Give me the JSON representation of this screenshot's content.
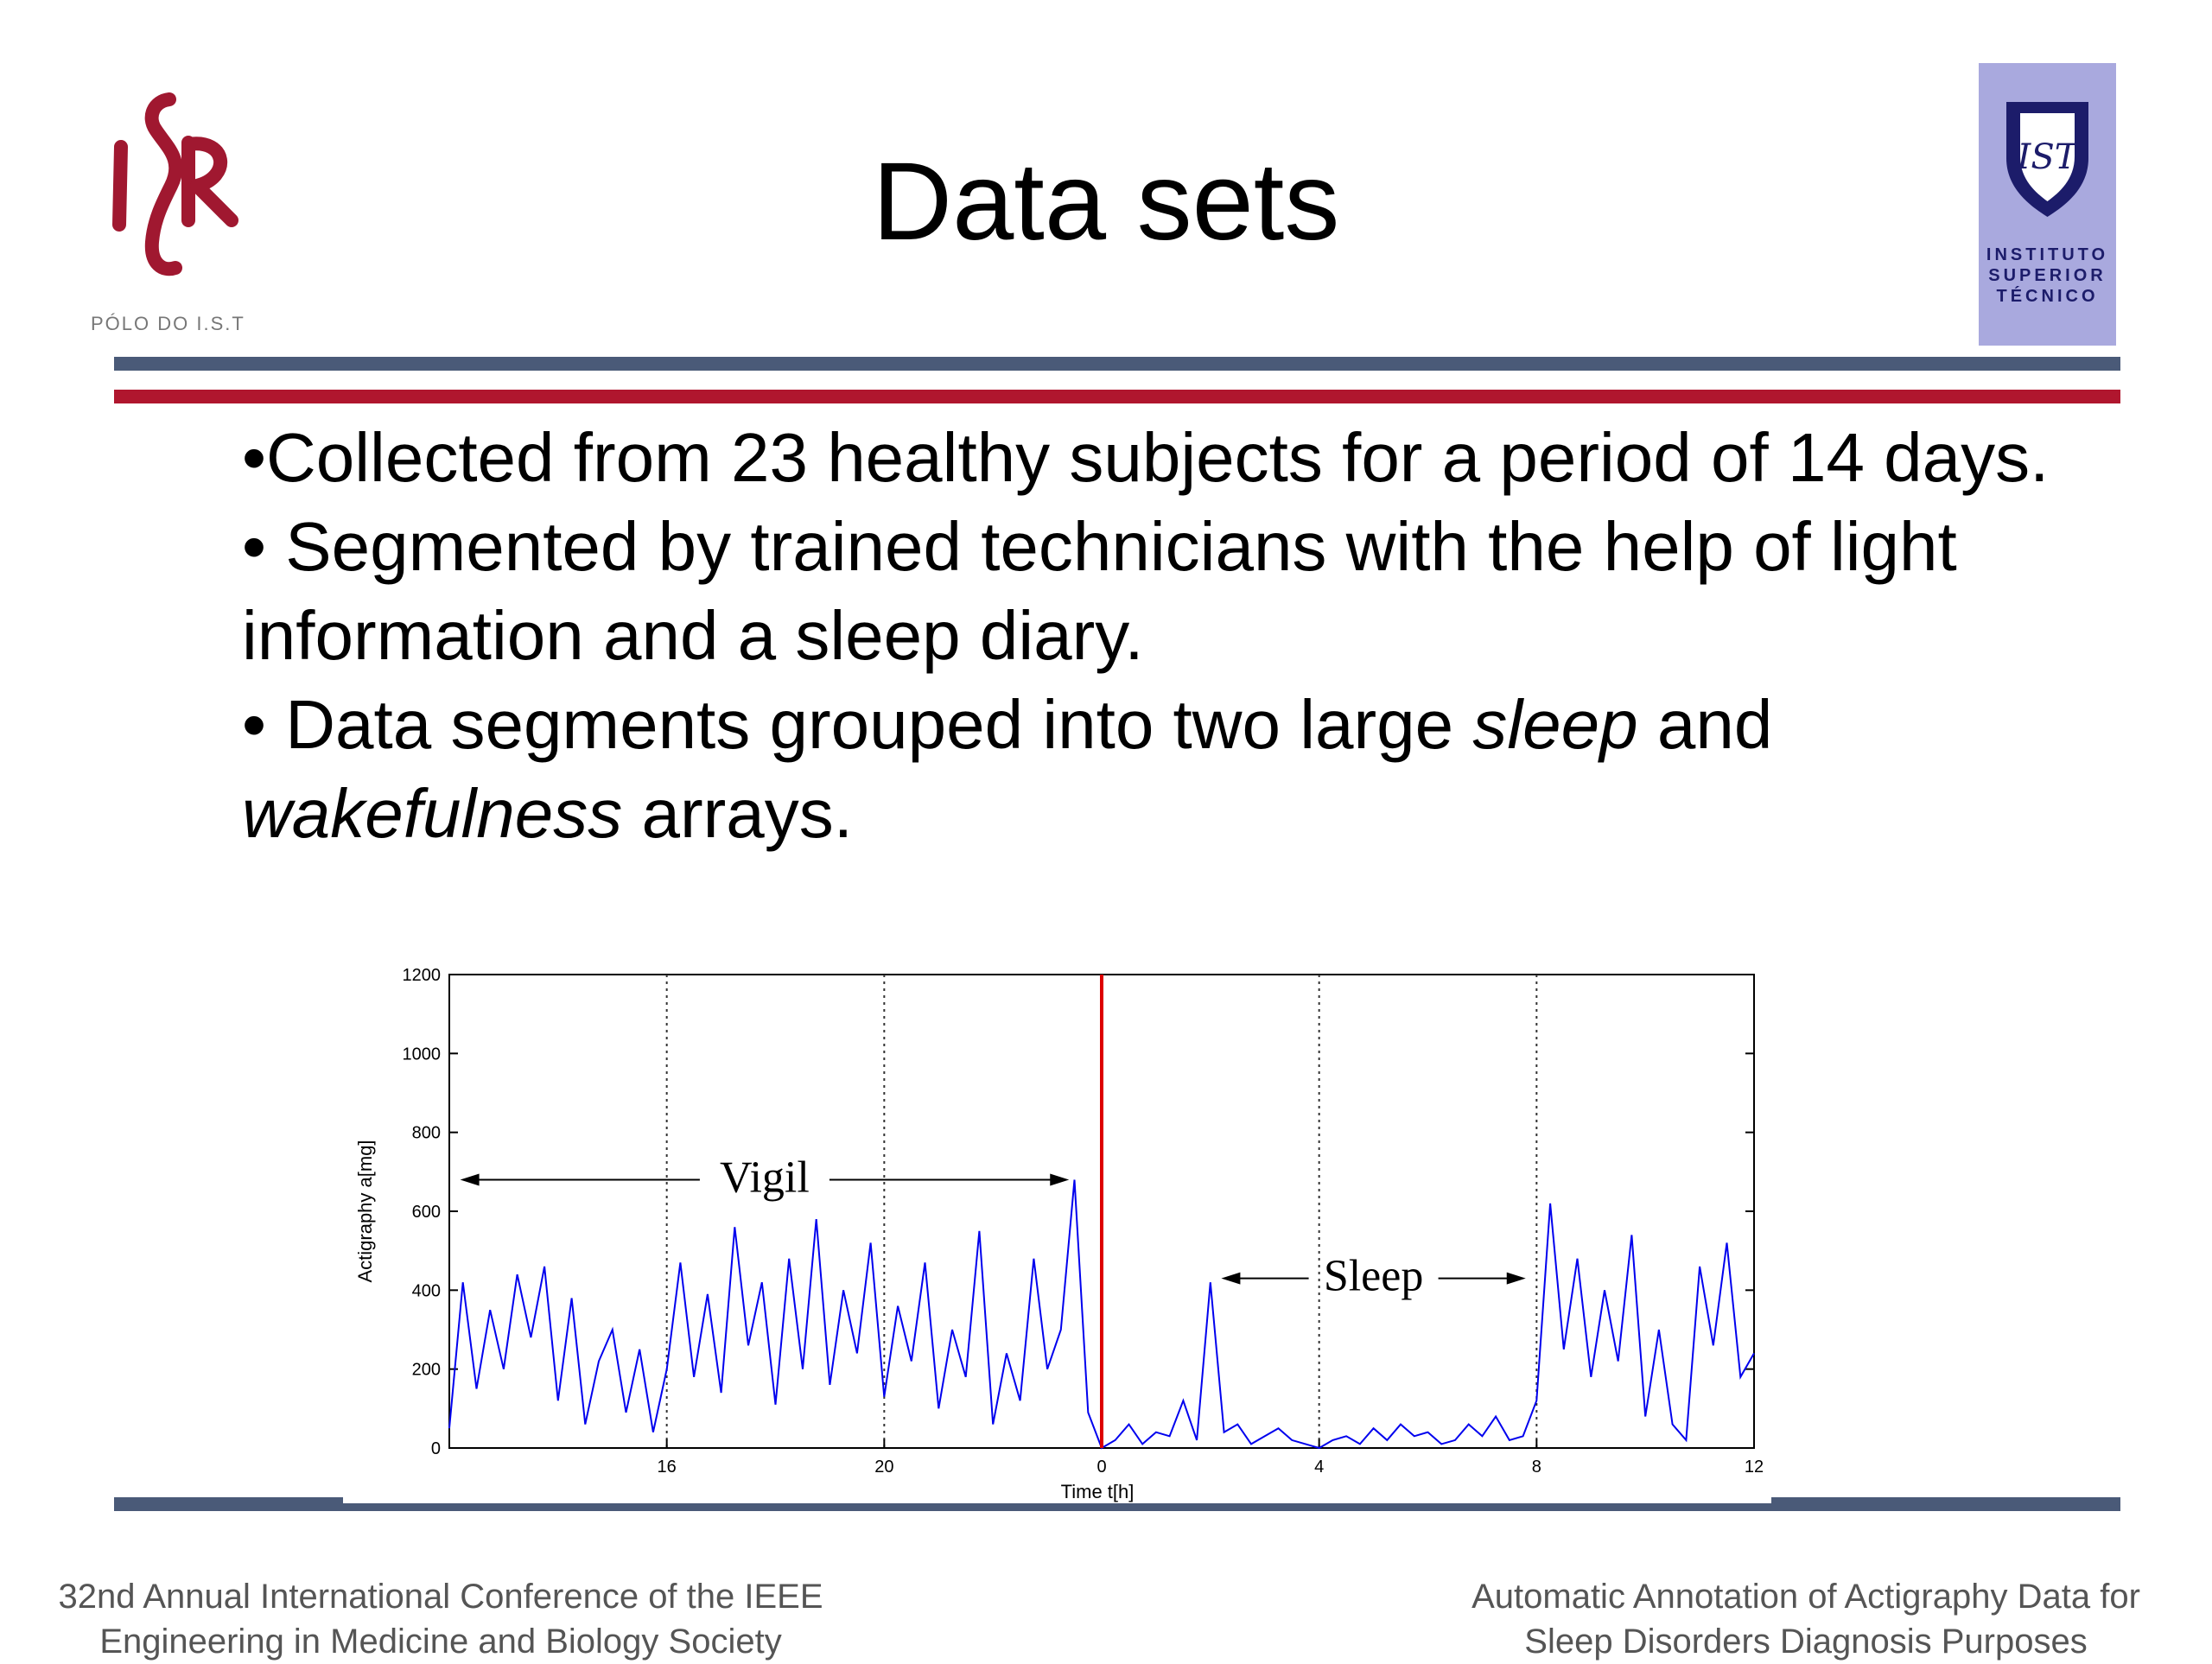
{
  "header": {
    "logo_left_caption": "PÓLO DO I.S.T",
    "title": "Data sets",
    "logo_right_lines": [
      "INSTITUTO",
      "SUPERIOR",
      "TÉCNICO"
    ]
  },
  "bullets": {
    "b1": "•Collected from 23 healthy subjects for a period of 14 days.",
    "b2": "• Segmented by trained technicians with the help of light information and a sleep diary.",
    "b3_pre": "• Data segments grouped into two large ",
    "b3_em1": "sleep",
    "b3_mid": " and ",
    "b3_em2": "wakefulness",
    "b3_post": " arrays."
  },
  "chart_data": {
    "type": "line",
    "xlabel": "Time t[h]",
    "ylabel": "Actigraphy a[mg]",
    "ylim": [
      0,
      1200
    ],
    "xlim": [
      12,
      36
    ],
    "x_tick_values": [
      16,
      20,
      24,
      28,
      32,
      36
    ],
    "x_tick_labels": [
      "16",
      "20",
      "0",
      "4",
      "8",
      "12"
    ],
    "y_ticks": [
      0,
      200,
      400,
      600,
      800,
      1000,
      1200
    ],
    "grid": "vertical dotted lines at 16, 20, 28, 32",
    "onset_marker_x": 24,
    "series_color": "#0000ee",
    "marker_color": "#dd0000",
    "annotations": [
      {
        "text": "Vigil",
        "x_start": 12.2,
        "x_end": 23.4,
        "y": 680
      },
      {
        "text": "Sleep",
        "x_start": 26.2,
        "x_end": 31.8,
        "y": 430
      }
    ],
    "series": [
      {
        "x": [
          12.0,
          12.25,
          12.5,
          12.75,
          13.0,
          13.25,
          13.5,
          13.75,
          14.0,
          14.25,
          14.5,
          14.75,
          15.0,
          15.25,
          15.5,
          15.75,
          16.0,
          16.25,
          16.5,
          16.75,
          17.0,
          17.25,
          17.5,
          17.75,
          18.0,
          18.25,
          18.5,
          18.75,
          19.0,
          19.25,
          19.5,
          19.75,
          20.0,
          20.25,
          20.5,
          20.75,
          21.0,
          21.25,
          21.5,
          21.75,
          22.0,
          22.25,
          22.5,
          22.75,
          23.0,
          23.25,
          23.5,
          23.75,
          24.0,
          24.25,
          24.5,
          24.75,
          25.0,
          25.25,
          25.5,
          25.75,
          26.0,
          26.25,
          26.5,
          26.75,
          27.0,
          27.25,
          27.5,
          27.75,
          28.0,
          28.25,
          28.5,
          28.75,
          29.0,
          29.25,
          29.5,
          29.75,
          30.0,
          30.25,
          30.5,
          30.75,
          31.0,
          31.25,
          31.5,
          31.75,
          32.0,
          32.25,
          32.5,
          32.75,
          33.0,
          33.25,
          33.5,
          33.75,
          34.0,
          34.25,
          34.5,
          34.75,
          35.0,
          35.25,
          35.5,
          35.75,
          36.0
        ],
        "y": [
          50,
          420,
          150,
          350,
          200,
          440,
          280,
          460,
          120,
          380,
          60,
          220,
          300,
          90,
          250,
          40,
          200,
          470,
          180,
          390,
          140,
          560,
          260,
          420,
          110,
          480,
          200,
          580,
          160,
          400,
          240,
          520,
          130,
          360,
          220,
          470,
          100,
          300,
          180,
          550,
          60,
          240,
          120,
          480,
          200,
          300,
          680,
          90,
          0,
          20,
          60,
          10,
          40,
          30,
          120,
          20,
          420,
          40,
          60,
          10,
          30,
          50,
          20,
          10,
          0,
          20,
          30,
          10,
          50,
          20,
          60,
          30,
          40,
          10,
          20,
          60,
          30,
          80,
          20,
          30,
          120,
          620,
          250,
          480,
          180,
          400,
          220,
          540,
          80,
          300,
          60,
          20,
          460,
          260,
          520,
          180,
          240
        ]
      }
    ]
  },
  "footer": {
    "left_line1": "32nd Annual International Conference of the IEEE",
    "left_line2": "Engineering in Medicine and Biology Society",
    "right_line1": "Automatic Annotation of Actigraphy Data for",
    "right_line2": "Sleep Disorders Diagnosis Purposes"
  }
}
